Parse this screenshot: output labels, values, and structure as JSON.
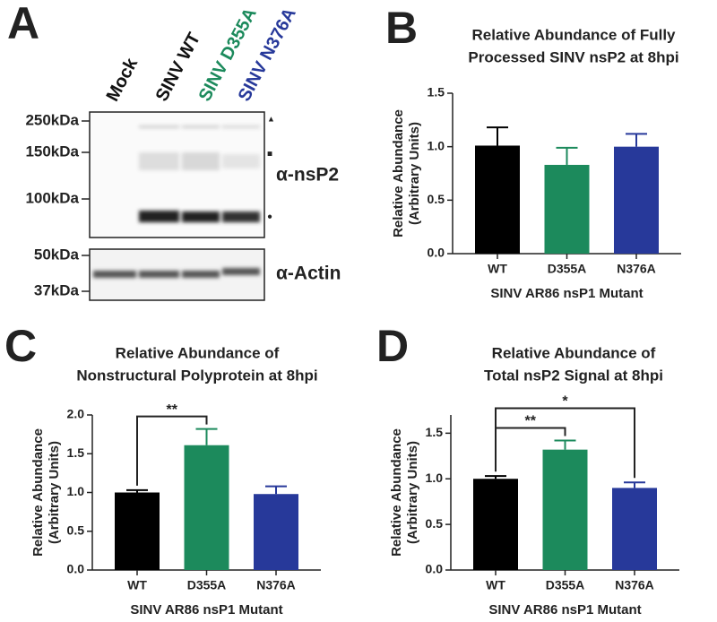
{
  "blot": {
    "panel": "A",
    "lanes": [
      {
        "label": "Mock",
        "color": "#111111"
      },
      {
        "label": "SINV WT",
        "color": "#111111"
      },
      {
        "label": "SINV D355A",
        "color": "#1c8a5c"
      },
      {
        "label": "SINV N376A",
        "color": "#27399a"
      }
    ],
    "markers": [
      "250kDa",
      "150kDa",
      "100kDa",
      "50kDa",
      "37kDa"
    ],
    "antibodies": [
      "α-nsP2",
      "α-Actin"
    ]
  },
  "chart_data": [
    {
      "type": "bar",
      "panel": "B",
      "title": [
        "Relative Abundance of Fully",
        "Processed SINV nsP2 at 8hpi"
      ],
      "ylabel": [
        "Relative Abundance",
        "(Arbitrary Units)"
      ],
      "xlabel": "SINV AR86 nsP1 Mutant",
      "categories": [
        "WT",
        "D355A",
        "N376A"
      ],
      "values": [
        1.01,
        0.83,
        1.0
      ],
      "errors": [
        0.17,
        0.16,
        0.12
      ],
      "colors": [
        "#000000",
        "#1c8a5c",
        "#27399a"
      ],
      "ylim": [
        0,
        1.5
      ],
      "yticks": [
        {
          "value": 0,
          "label": "0.0"
        },
        0.5,
        {
          "value": 1,
          "label": "1.0"
        },
        1.5
      ],
      "annotations": []
    },
    {
      "type": "bar",
      "panel": "C",
      "title": [
        "Relative Abundance of",
        "Nonstructural Polyprotein at 8hpi"
      ],
      "ylabel": [
        "Relative Abundance",
        "(Arbitrary Units)"
      ],
      "xlabel": "SINV AR86 nsP1 Mutant",
      "categories": [
        "WT",
        "D355A",
        "N376A"
      ],
      "values": [
        1.0,
        1.61,
        0.98
      ],
      "errors": [
        0.03,
        0.21,
        0.1
      ],
      "colors": [
        "#000000",
        "#1c8a5c",
        "#27399a"
      ],
      "ylim": [
        0,
        2
      ],
      "yticks": [
        {
          "value": 0,
          "label": "0.0"
        },
        0.5,
        {
          "value": 1,
          "label": "1.0"
        },
        1.5,
        {
          "value": 2,
          "label": "2.0"
        }
      ],
      "annotations": [
        {
          "text": "**",
          "from": 0,
          "to": 1
        }
      ]
    },
    {
      "type": "bar",
      "panel": "D",
      "title": [
        "Relative Abundance of",
        "Total nsP2 Signal at 8hpi"
      ],
      "ylabel": [
        "Relative Abundance",
        "(Arbitrary Units)"
      ],
      "xlabel": "SINV AR86 nsP1 Mutant",
      "categories": [
        "WT",
        "D355A",
        "N376A"
      ],
      "values": [
        1.0,
        1.32,
        0.9
      ],
      "errors": [
        0.03,
        0.1,
        0.06
      ],
      "colors": [
        "#000000",
        "#1c8a5c",
        "#27399a"
      ],
      "ylim": [
        0,
        1.7
      ],
      "yticks": [
        {
          "value": 0,
          "label": "0.0"
        },
        0.5,
        {
          "value": 1,
          "label": "1.0"
        },
        1.5
      ],
      "annotations": [
        {
          "text": "**",
          "from": 0,
          "to": 1
        },
        {
          "text": "*",
          "from": 0,
          "to": 2
        }
      ]
    }
  ]
}
